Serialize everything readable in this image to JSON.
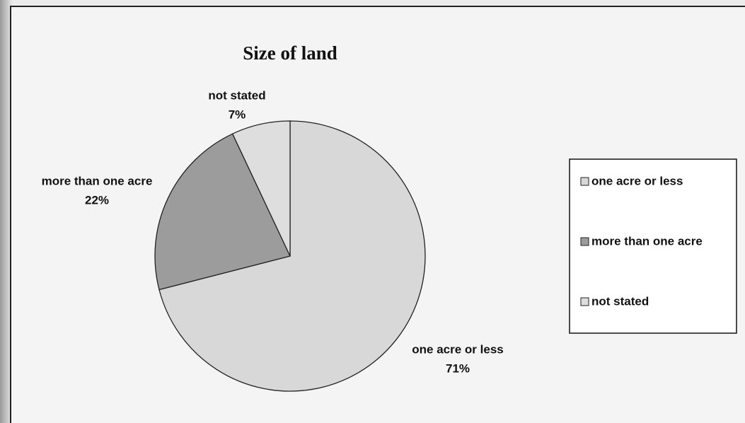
{
  "chart_data": {
    "type": "pie",
    "title": "Size of land",
    "categories": [
      "one acre or less",
      "more than one acre",
      "not stated"
    ],
    "values": [
      71,
      22,
      7
    ],
    "value_labels": [
      "71%",
      "22%",
      "7%"
    ],
    "colors": [
      "#d8d8d8",
      "#9c9c9c",
      "#dedede"
    ],
    "legend": "right"
  }
}
